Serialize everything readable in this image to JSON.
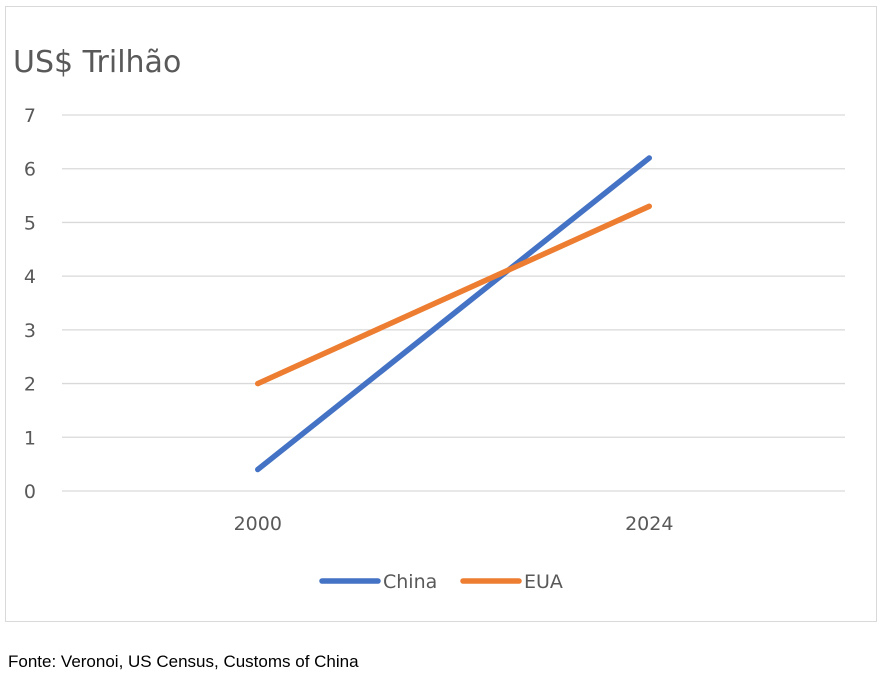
{
  "source_note": "Fonte: Veronoi, US Census, Customs of China",
  "chart_data": {
    "type": "line",
    "title": "US$ Trilhão",
    "xlabel": "",
    "ylabel": "",
    "categories": [
      "2000",
      "2024"
    ],
    "ylim": [
      0,
      7
    ],
    "yticks": [
      0,
      1,
      2,
      3,
      4,
      5,
      6,
      7
    ],
    "grid": true,
    "legend_position": "bottom",
    "series": [
      {
        "name": "China",
        "values": [
          0.4,
          6.2
        ],
        "color": "#4472c4"
      },
      {
        "name": "EUA",
        "values": [
          2.0,
          5.3
        ],
        "color": "#ed7d31"
      }
    ]
  }
}
